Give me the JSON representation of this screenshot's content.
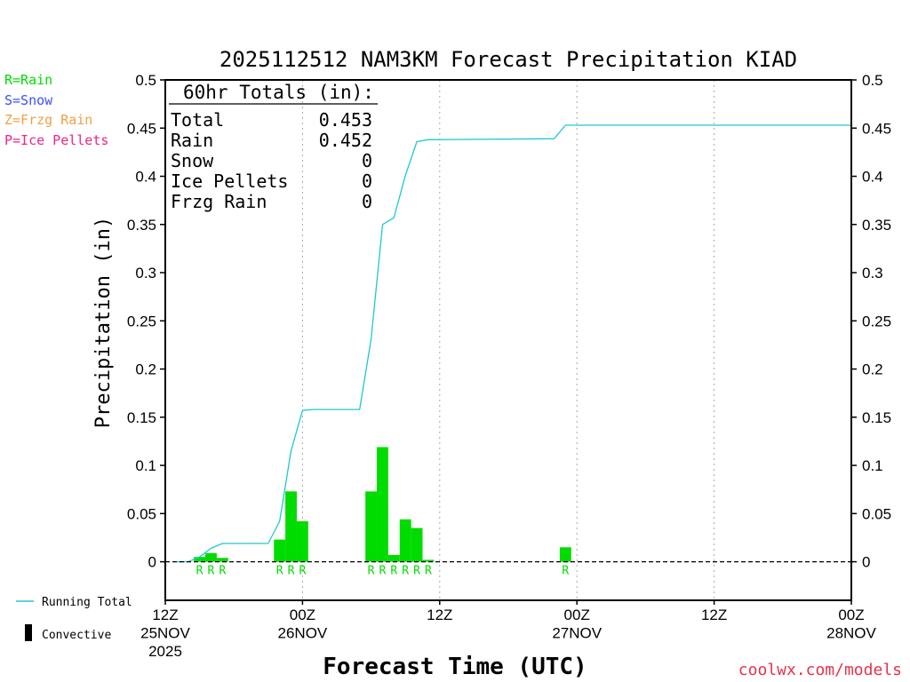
{
  "type_legend": [
    {
      "label": "R=Rain",
      "color": "#00dc00"
    },
    {
      "label": "S=Snow",
      "color": "#3c50ff"
    },
    {
      "label": "Z=Frzg Rain",
      "color": "#f0a046"
    },
    {
      "label": "P=Ice Pellets",
      "color": "#f0238c"
    }
  ],
  "series_legend": [
    {
      "label": "Running Total",
      "color": "#1ec8d2"
    },
    {
      "label": "Convective",
      "color": "#000000"
    }
  ],
  "totals_box": {
    "heading": "60hr Totals (in):",
    "rows": [
      {
        "label": "Total",
        "value": "0.453"
      },
      {
        "label": "Rain",
        "value": "0.452"
      },
      {
        "label": "Snow",
        "value": "0"
      },
      {
        "label": "Ice Pellets",
        "value": "0"
      },
      {
        "label": "Frzg Rain",
        "value": "0"
      }
    ]
  },
  "watermark": {
    "text": "coolwx.com/models",
    "color": "#e6324b"
  },
  "chart_data": {
    "type": "bar",
    "title": "2025112512 NAM3KM Forecast Precipitation KIAD",
    "xlabel": "Forecast Time (UTC)",
    "ylabel": "Precipitation (in)",
    "xlim": [
      "2025-11-25T12:00:00Z",
      "2025-11-28T00:00:00Z"
    ],
    "ylim": [
      -0.04,
      0.5
    ],
    "yticks": [
      "0.5",
      "0.45",
      "0.4",
      "0.35",
      "0.3",
      "0.25",
      "0.2",
      "0.15",
      "0.1",
      "0.05",
      "0"
    ],
    "mirrored_y_axis": true,
    "xticks": [
      {
        "at": "2025-11-25T12:00:00Z",
        "lines": [
          "12Z",
          "25NOV",
          "2025"
        ]
      },
      {
        "at": "2025-11-26T00:00:00Z",
        "lines": [
          "00Z",
          "26NOV"
        ]
      },
      {
        "at": "2025-11-26T12:00:00Z",
        "lines": [
          "12Z"
        ]
      },
      {
        "at": "2025-11-27T00:00:00Z",
        "lines": [
          "00Z",
          "27NOV"
        ]
      },
      {
        "at": "2025-11-27T12:00:00Z",
        "lines": [
          "12Z"
        ]
      },
      {
        "at": "2025-11-28T00:00:00Z",
        "lines": [
          "00Z",
          "28NOV"
        ]
      }
    ],
    "grid": {
      "x": true,
      "y": false
    },
    "zero_line": true,
    "series": [
      {
        "kind": "bar",
        "color": "#00dc00",
        "points": [
          {
            "time": "2025-11-25T15:00:00Z",
            "value": 0.005,
            "ptype": "R"
          },
          {
            "time": "2025-11-25T16:00:00Z",
            "value": 0.009,
            "ptype": "R"
          },
          {
            "time": "2025-11-25T17:00:00Z",
            "value": 0.004,
            "ptype": "R"
          },
          {
            "time": "2025-11-25T22:00:00Z",
            "value": 0.023,
            "ptype": "R"
          },
          {
            "time": "2025-11-25T23:00:00Z",
            "value": 0.073,
            "ptype": "R"
          },
          {
            "time": "2025-11-26T00:00:00Z",
            "value": 0.042,
            "ptype": "R"
          },
          {
            "time": "2025-11-26T06:00:00Z",
            "value": 0.073,
            "ptype": "R"
          },
          {
            "time": "2025-11-26T07:00:00Z",
            "value": 0.119,
            "ptype": "R"
          },
          {
            "time": "2025-11-26T08:00:00Z",
            "value": 0.007,
            "ptype": "R"
          },
          {
            "time": "2025-11-26T09:00:00Z",
            "value": 0.044,
            "ptype": "R"
          },
          {
            "time": "2025-11-26T10:00:00Z",
            "value": 0.035,
            "ptype": "R"
          },
          {
            "time": "2025-11-26T11:00:00Z",
            "value": 0.002,
            "ptype": "R"
          },
          {
            "time": "2025-11-26T23:00:00Z",
            "value": 0.015,
            "ptype": "R"
          }
        ]
      },
      {
        "name": "Running Total",
        "kind": "line",
        "color": "#1ec8d2",
        "points": [
          {
            "time": "2025-11-25T13:00:00Z",
            "value": 0
          },
          {
            "time": "2025-11-25T14:00:00Z",
            "value": 0
          },
          {
            "time": "2025-11-25T15:00:00Z",
            "value": 0.005
          },
          {
            "time": "2025-11-25T16:00:00Z",
            "value": 0.014
          },
          {
            "time": "2025-11-25T17:00:00Z",
            "value": 0.019
          },
          {
            "time": "2025-11-25T21:00:00Z",
            "value": 0.019
          },
          {
            "time": "2025-11-25T22:00:00Z",
            "value": 0.042
          },
          {
            "time": "2025-11-25T23:00:00Z",
            "value": 0.115
          },
          {
            "time": "2025-11-26T00:00:00Z",
            "value": 0.157
          },
          {
            "time": "2025-11-26T01:00:00Z",
            "value": 0.158
          },
          {
            "time": "2025-11-26T05:00:00Z",
            "value": 0.158
          },
          {
            "time": "2025-11-26T06:00:00Z",
            "value": 0.231
          },
          {
            "time": "2025-11-26T07:00:00Z",
            "value": 0.35
          },
          {
            "time": "2025-11-26T08:00:00Z",
            "value": 0.357
          },
          {
            "time": "2025-11-26T09:00:00Z",
            "value": 0.401
          },
          {
            "time": "2025-11-26T10:00:00Z",
            "value": 0.436
          },
          {
            "time": "2025-11-26T11:00:00Z",
            "value": 0.438
          },
          {
            "time": "2025-11-26T22:00:00Z",
            "value": 0.439
          },
          {
            "time": "2025-11-26T23:00:00Z",
            "value": 0.453
          },
          {
            "time": "2025-11-28T00:00:00Z",
            "value": 0.453
          }
        ]
      }
    ]
  }
}
